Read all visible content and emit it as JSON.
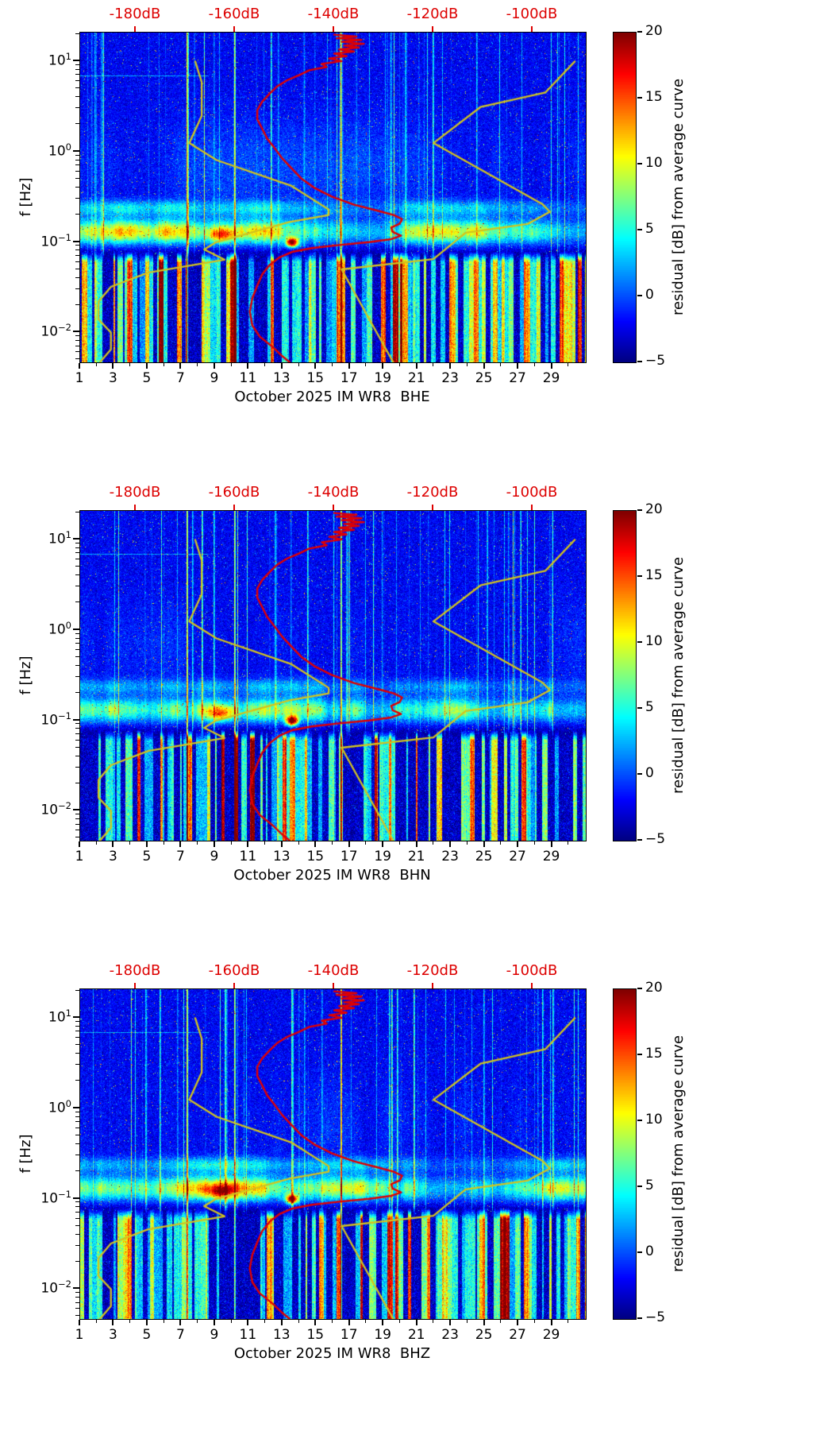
{
  "figure": {
    "top_axis": {
      "labels": [
        "-180dB",
        "-160dB",
        "-140dB",
        "-120dB",
        "-100dB"
      ],
      "values": [
        -180,
        -160,
        -140,
        -120,
        -100
      ],
      "color": "#dd0000"
    },
    "x_axis": {
      "tick_labels": [
        "1",
        "3",
        "5",
        "7",
        "9",
        "11",
        "13",
        "15",
        "17",
        "19",
        "21",
        "23",
        "25",
        "27",
        "29"
      ],
      "tick_days": [
        1,
        3,
        5,
        7,
        9,
        11,
        13,
        15,
        17,
        19,
        21,
        23,
        25,
        27,
        29
      ],
      "day_range": [
        1,
        31
      ]
    },
    "y_axis": {
      "label": "f [Hz]",
      "tick_mant": "10",
      "ticks": [
        {
          "exp": "1",
          "log10": 1
        },
        {
          "exp": "0",
          "log10": 0
        },
        {
          "exp": "−1",
          "log10": -1
        },
        {
          "exp": "−2",
          "log10": -2
        }
      ]
    },
    "colorbar": {
      "label": "residual [dB] from average curve",
      "tick_labels": [
        "20",
        "15",
        "10",
        "5",
        "0",
        "−5"
      ],
      "tick_values": [
        20,
        15,
        10,
        5,
        0,
        -5
      ],
      "vmin": -5,
      "vmax": 20,
      "colormap": "jet"
    },
    "panels": [
      {
        "channel": "BHE",
        "xlabel": "October 2025 IM WR8  BHE"
      },
      {
        "channel": "BHN",
        "xlabel": "October 2025 IM WR8  BHN"
      },
      {
        "channel": "BHZ",
        "xlabel": "October 2025 IM WR8  BHZ"
      }
    ]
  },
  "chart_data": {
    "type": "heatmap",
    "title": "",
    "subplots": [
      {
        "channel": "BHE",
        "xlabel": "October 2025 IM WR8  BHE"
      },
      {
        "channel": "BHN",
        "xlabel": "October 2025 IM WR8  BHN"
      },
      {
        "channel": "BHZ",
        "xlabel": "October 2025 IM WR8  BHZ"
      }
    ],
    "x_axis": {
      "quantity": "day of October 2025",
      "ticks": [
        1,
        3,
        5,
        7,
        9,
        11,
        13,
        15,
        17,
        19,
        21,
        23,
        25,
        27,
        29
      ],
      "range": [
        1,
        31
      ]
    },
    "y_axis": {
      "label": "f [Hz]",
      "scale": "log",
      "range_hz": [
        0.0047,
        20.9
      ],
      "major_ticks_hz": [
        10,
        1,
        0.1,
        0.01
      ]
    },
    "color_axis": {
      "label": "residual [dB] from average curve",
      "range_db": [
        -5,
        20
      ],
      "colormap": "jet",
      "ticks": [
        20,
        15,
        10,
        5,
        0,
        -5
      ]
    },
    "top_axis": {
      "unit": "dB",
      "ticks_db": [
        -180,
        -160,
        -140,
        -120,
        -100
      ],
      "description": "absolute power scale used by the overlay curves"
    },
    "overlays": {
      "mean_psd": {
        "color": "#e10000",
        "description": "station average PSD curve (nearly identical shape on all three panels)",
        "points_f_hz_db": [
          [
            19.8,
            -140
          ],
          [
            18.9,
            -135.5
          ],
          [
            18.1,
            -139.5
          ],
          [
            17.3,
            -134.5
          ],
          [
            16.5,
            -138.5
          ],
          [
            15.7,
            -134
          ],
          [
            15.0,
            -138
          ],
          [
            14.3,
            -135
          ],
          [
            13.6,
            -139
          ],
          [
            12.9,
            -136
          ],
          [
            12.2,
            -140
          ],
          [
            11.5,
            -137.5
          ],
          [
            10.8,
            -141
          ],
          [
            10.1,
            -138.5
          ],
          [
            9.4,
            -142.5
          ],
          [
            8.7,
            -141.5
          ],
          [
            8.0,
            -145
          ],
          [
            7.1,
            -147
          ],
          [
            6.2,
            -149.5
          ],
          [
            5.3,
            -151.5
          ],
          [
            4.4,
            -153
          ],
          [
            3.6,
            -154.5
          ],
          [
            2.9,
            -155.5
          ],
          [
            2.3,
            -155.5
          ],
          [
            1.8,
            -154.5
          ],
          [
            1.4,
            -153.5
          ],
          [
            1.1,
            -152
          ],
          [
            0.85,
            -150.5
          ],
          [
            0.65,
            -148.5
          ],
          [
            0.5,
            -146.5
          ],
          [
            0.4,
            -144
          ],
          [
            0.32,
            -140.5
          ],
          [
            0.26,
            -136
          ],
          [
            0.225,
            -131.5
          ],
          [
            0.2,
            -128
          ],
          [
            0.18,
            -126.3
          ],
          [
            0.16,
            -126.8
          ],
          [
            0.145,
            -128.5
          ],
          [
            0.13,
            -128.2
          ],
          [
            0.118,
            -126.5
          ],
          [
            0.108,
            -128.5
          ],
          [
            0.1,
            -133
          ],
          [
            0.093,
            -139
          ],
          [
            0.086,
            -144.5
          ],
          [
            0.078,
            -148.5
          ],
          [
            0.068,
            -151
          ],
          [
            0.056,
            -153
          ],
          [
            0.044,
            -154.5
          ],
          [
            0.033,
            -155.5
          ],
          [
            0.024,
            -156.5
          ],
          [
            0.017,
            -157
          ],
          [
            0.012,
            -156.5
          ],
          [
            0.009,
            -155
          ],
          [
            0.007,
            -152.5
          ],
          [
            0.0055,
            -150.5
          ],
          [
            0.0047,
            -149
          ]
        ]
      },
      "nlnm": {
        "color": "#d2c31e",
        "description": "Peterson New Low Noise Model",
        "points_f_hz_db": [
          [
            10,
            -168
          ],
          [
            5.9,
            -166.7
          ],
          [
            2.5,
            -166.7
          ],
          [
            1.25,
            -169.2
          ],
          [
            0.81,
            -163.7
          ],
          [
            0.42,
            -148.6
          ],
          [
            0.23,
            -141.1
          ],
          [
            0.2,
            -141.1
          ],
          [
            0.167,
            -149
          ],
          [
            0.1,
            -163.8
          ],
          [
            0.083,
            -166.2
          ],
          [
            0.064,
            -162.1
          ],
          [
            0.046,
            -177.5
          ],
          [
            0.032,
            -185
          ],
          [
            0.022,
            -187.5
          ],
          [
            0.014,
            -187.5
          ],
          [
            0.01,
            -185
          ],
          [
            0.0065,
            -185
          ],
          [
            0.0047,
            -187.2
          ]
        ]
      },
      "nhnm": {
        "color": "#d2c31e",
        "description": "Peterson New High Noise Model",
        "points_f_hz_db": [
          [
            10,
            -91.5
          ],
          [
            4.55,
            -97.4
          ],
          [
            3.13,
            -110.5
          ],
          [
            1.25,
            -120
          ],
          [
            0.263,
            -98
          ],
          [
            0.217,
            -96.5
          ],
          [
            0.159,
            -101
          ],
          [
            0.127,
            -113.5
          ],
          [
            0.065,
            -120
          ],
          [
            0.05,
            -138.5
          ],
          [
            0.0047,
            -128.1
          ]
        ]
      }
    },
    "features": [
      "background residual mostly -3..0 dB (dark blue field)",
      "ocean microseism band ~0.08-0.3 Hz elevated +5..+15 dB, strongest days 1-12",
      "intense hotspot near day 13.5 at ~0.1 Hz reaching ~+20 dB (dark red blob)",
      "orange patch near days 9-10 at ~0.12 Hz",
      "numerous thin full-height transient stripes throughout the month",
      "persistent narrow red event lines near days 7.3, 10.2 and 16.5",
      "strong broadband transients below ~0.08 Hz appearing as green/yellow/red vertical bars separated by dark gaps",
      "faint horizontal tonal line near 7 Hz during days 1-8"
    ]
  }
}
